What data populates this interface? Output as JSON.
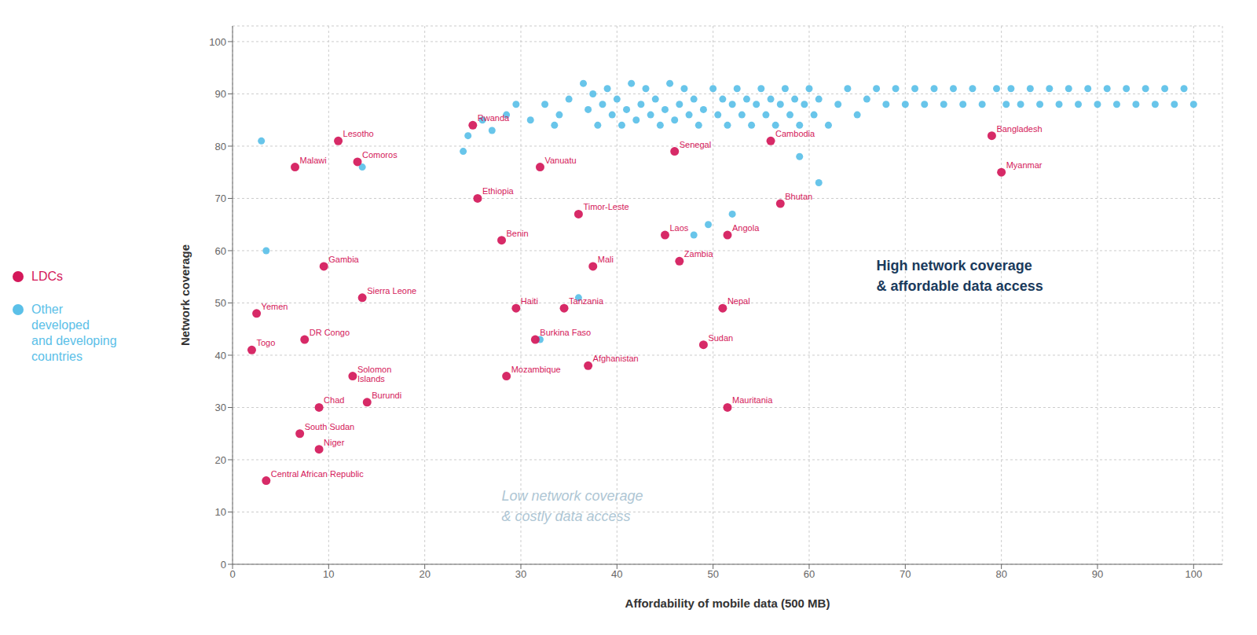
{
  "chart_data": {
    "type": "scatter",
    "xlabel": "Affordability of mobile data (500 MB)",
    "ylabel": "Network coverage",
    "xlim": [
      0,
      103
    ],
    "ylim": [
      0,
      103
    ],
    "xticks": [
      0,
      10,
      20,
      30,
      40,
      50,
      60,
      70,
      80,
      90,
      100
    ],
    "yticks": [
      0,
      10,
      20,
      30,
      40,
      50,
      60,
      70,
      80,
      90,
      100
    ],
    "grid": true,
    "legend": "left",
    "series": [
      {
        "name": "LDCs",
        "color": "#d4185a",
        "points": [
          {
            "label": "Yemen",
            "x": 2.5,
            "y": 48
          },
          {
            "label": "Togo",
            "x": 2.0,
            "y": 41
          },
          {
            "label": "DR Congo",
            "x": 7.5,
            "y": 43
          },
          {
            "label": "Solomon\nIslands",
            "x": 12.5,
            "y": 36
          },
          {
            "label": "Burundi",
            "x": 14.0,
            "y": 31
          },
          {
            "label": "Chad",
            "x": 9.0,
            "y": 30
          },
          {
            "label": "South Sudan",
            "x": 7.0,
            "y": 25
          },
          {
            "label": "Niger",
            "x": 9.0,
            "y": 22
          },
          {
            "label": "Central African Republic",
            "x": 3.5,
            "y": 16
          },
          {
            "label": "Malawi",
            "x": 6.5,
            "y": 76
          },
          {
            "label": "Lesotho",
            "x": 11.0,
            "y": 81
          },
          {
            "label": "Comoros",
            "x": 13.0,
            "y": 77
          },
          {
            "label": "Gambia",
            "x": 9.5,
            "y": 57
          },
          {
            "label": "Sierra Leone",
            "x": 13.5,
            "y": 51
          },
          {
            "label": "Rwanda",
            "x": 25.0,
            "y": 84
          },
          {
            "label": "Ethiopia",
            "x": 25.5,
            "y": 70
          },
          {
            "label": "Benin",
            "x": 28.0,
            "y": 62
          },
          {
            "label": "Vanuatu",
            "x": 32.0,
            "y": 76
          },
          {
            "label": "Timor-Leste",
            "x": 36.0,
            "y": 67
          },
          {
            "label": "Haiti",
            "x": 29.5,
            "y": 49
          },
          {
            "label": "Burkina Faso",
            "x": 31.5,
            "y": 43
          },
          {
            "label": "Tanzania",
            "x": 34.5,
            "y": 49
          },
          {
            "label": "Mali",
            "x": 37.5,
            "y": 57
          },
          {
            "label": "Mozambique",
            "x": 28.5,
            "y": 36
          },
          {
            "label": "Afghanistan",
            "x": 37.0,
            "y": 38
          },
          {
            "label": "Senegal",
            "x": 46.0,
            "y": 79
          },
          {
            "label": "Laos",
            "x": 45.0,
            "y": 63
          },
          {
            "label": "Zambia",
            "x": 46.5,
            "y": 58
          },
          {
            "label": "Angola",
            "x": 51.5,
            "y": 63
          },
          {
            "label": "Nepal",
            "x": 51.0,
            "y": 49
          },
          {
            "label": "Sudan",
            "x": 49.0,
            "y": 42
          },
          {
            "label": "Mauritania",
            "x": 51.5,
            "y": 30
          },
          {
            "label": "Cambodia",
            "x": 56.0,
            "y": 81
          },
          {
            "label": "Bhutan",
            "x": 57.0,
            "y": 69
          },
          {
            "label": "Bangladesh",
            "x": 79.0,
            "y": 82
          },
          {
            "label": "Myanmar",
            "x": 80.0,
            "y": 75
          }
        ]
      },
      {
        "name": "Other\ndeveloped\nand developing\ncountries",
        "color": "#5bc0e8",
        "points": [
          {
            "x": 3.0,
            "y": 81
          },
          {
            "x": 3.5,
            "y": 60
          },
          {
            "x": 13.5,
            "y": 76
          },
          {
            "x": 24.0,
            "y": 79
          },
          {
            "x": 24.5,
            "y": 82
          },
          {
            "x": 26.0,
            "y": 85
          },
          {
            "x": 27.0,
            "y": 83
          },
          {
            "x": 28.5,
            "y": 86
          },
          {
            "x": 29.5,
            "y": 88
          },
          {
            "x": 31.0,
            "y": 85
          },
          {
            "x": 32.5,
            "y": 88
          },
          {
            "x": 33.5,
            "y": 84
          },
          {
            "x": 34.0,
            "y": 86
          },
          {
            "x": 35.0,
            "y": 89
          },
          {
            "x": 36.5,
            "y": 92
          },
          {
            "x": 37.0,
            "y": 87
          },
          {
            "x": 37.5,
            "y": 90
          },
          {
            "x": 38.0,
            "y": 84
          },
          {
            "x": 38.5,
            "y": 88
          },
          {
            "x": 39.0,
            "y": 91
          },
          {
            "x": 39.5,
            "y": 86
          },
          {
            "x": 40.0,
            "y": 89
          },
          {
            "x": 40.5,
            "y": 84
          },
          {
            "x": 41.0,
            "y": 87
          },
          {
            "x": 41.5,
            "y": 92
          },
          {
            "x": 42.0,
            "y": 85
          },
          {
            "x": 42.5,
            "y": 88
          },
          {
            "x": 43.0,
            "y": 91
          },
          {
            "x": 43.5,
            "y": 86
          },
          {
            "x": 44.0,
            "y": 89
          },
          {
            "x": 44.5,
            "y": 84
          },
          {
            "x": 45.0,
            "y": 87
          },
          {
            "x": 45.5,
            "y": 92
          },
          {
            "x": 46.0,
            "y": 85
          },
          {
            "x": 46.5,
            "y": 88
          },
          {
            "x": 47.0,
            "y": 91
          },
          {
            "x": 47.5,
            "y": 86
          },
          {
            "x": 48.0,
            "y": 89
          },
          {
            "x": 48.5,
            "y": 84
          },
          {
            "x": 49.0,
            "y": 87
          },
          {
            "x": 49.5,
            "y": 65
          },
          {
            "x": 50.0,
            "y": 91
          },
          {
            "x": 50.5,
            "y": 86
          },
          {
            "x": 51.0,
            "y": 89
          },
          {
            "x": 51.5,
            "y": 84
          },
          {
            "x": 52.0,
            "y": 88
          },
          {
            "x": 52.5,
            "y": 91
          },
          {
            "x": 53.0,
            "y": 86
          },
          {
            "x": 53.5,
            "y": 89
          },
          {
            "x": 54.0,
            "y": 84
          },
          {
            "x": 54.5,
            "y": 88
          },
          {
            "x": 55.0,
            "y": 91
          },
          {
            "x": 55.5,
            "y": 86
          },
          {
            "x": 56.0,
            "y": 89
          },
          {
            "x": 56.5,
            "y": 84
          },
          {
            "x": 57.0,
            "y": 88
          },
          {
            "x": 57.5,
            "y": 91
          },
          {
            "x": 58.0,
            "y": 86
          },
          {
            "x": 58.5,
            "y": 89
          },
          {
            "x": 59.0,
            "y": 84
          },
          {
            "x": 59.5,
            "y": 88
          },
          {
            "x": 60.0,
            "y": 91
          },
          {
            "x": 60.5,
            "y": 86
          },
          {
            "x": 61.0,
            "y": 89
          },
          {
            "x": 62.0,
            "y": 84
          },
          {
            "x": 63.0,
            "y": 88
          },
          {
            "x": 64.0,
            "y": 91
          },
          {
            "x": 65.0,
            "y": 86
          },
          {
            "x": 66.0,
            "y": 89
          },
          {
            "x": 67.0,
            "y": 91
          },
          {
            "x": 68.0,
            "y": 88
          },
          {
            "x": 69.0,
            "y": 91
          },
          {
            "x": 70.0,
            "y": 88
          },
          {
            "x": 71.0,
            "y": 91
          },
          {
            "x": 72.0,
            "y": 88
          },
          {
            "x": 73.0,
            "y": 91
          },
          {
            "x": 74.0,
            "y": 88
          },
          {
            "x": 75.0,
            "y": 91
          },
          {
            "x": 76.0,
            "y": 88
          },
          {
            "x": 77.0,
            "y": 91
          },
          {
            "x": 78.0,
            "y": 88
          },
          {
            "x": 79.5,
            "y": 91
          },
          {
            "x": 80.5,
            "y": 88
          },
          {
            "x": 81.0,
            "y": 91
          },
          {
            "x": 82.0,
            "y": 88
          },
          {
            "x": 83.0,
            "y": 91
          },
          {
            "x": 84.0,
            "y": 88
          },
          {
            "x": 85.0,
            "y": 91
          },
          {
            "x": 86.0,
            "y": 88
          },
          {
            "x": 87.0,
            "y": 91
          },
          {
            "x": 88.0,
            "y": 88
          },
          {
            "x": 89.0,
            "y": 91
          },
          {
            "x": 90.0,
            "y": 88
          },
          {
            "x": 91.0,
            "y": 91
          },
          {
            "x": 92.0,
            "y": 88
          },
          {
            "x": 93.0,
            "y": 91
          },
          {
            "x": 94.0,
            "y": 88
          },
          {
            "x": 95.0,
            "y": 91
          },
          {
            "x": 96.0,
            "y": 88
          },
          {
            "x": 97.0,
            "y": 91
          },
          {
            "x": 98.0,
            "y": 88
          },
          {
            "x": 99.0,
            "y": 91
          },
          {
            "x": 100.0,
            "y": 88
          },
          {
            "x": 36.0,
            "y": 51
          },
          {
            "x": 32.0,
            "y": 43
          },
          {
            "x": 48.0,
            "y": 63
          },
          {
            "x": 52.0,
            "y": 67
          },
          {
            "x": 59.0,
            "y": 78
          },
          {
            "x": 61.0,
            "y": 73
          }
        ]
      }
    ],
    "annotations": [
      {
        "text": "Low network coverage\n& costly data access",
        "x": 28,
        "y": 11,
        "color": "#aec6d4"
      },
      {
        "text": "High network coverage\n& affordable data access",
        "x": 67,
        "y": 55,
        "color": "#1a3a5c"
      }
    ]
  }
}
